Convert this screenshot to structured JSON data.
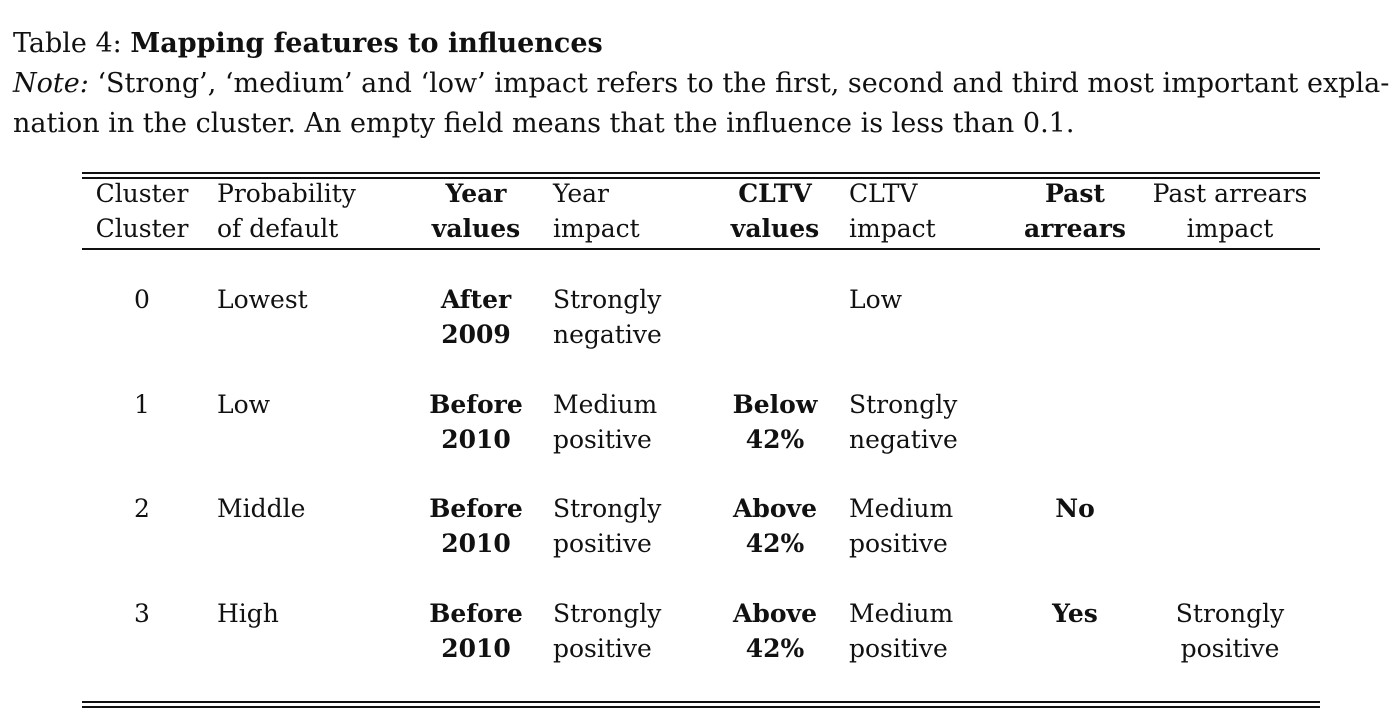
{
  "caption": {
    "table_label": "Table 4:",
    "title": "Mapping features to influences",
    "note_label": "Note:",
    "note_line1": "‘Strong’, ‘medium’ and ‘low’ impact refers to the first, second and third most important expla-",
    "note_line2": "nation in the cluster. An empty field means that the influence is less than 0.1."
  },
  "table": {
    "headers": {
      "cluster": [
        "Cluster",
        "Cluster"
      ],
      "probability": [
        "Probability",
        "of default"
      ],
      "year_values": [
        "Year",
        "values"
      ],
      "year_impact": [
        "Year",
        "impact"
      ],
      "cltv_values": [
        "CLTV",
        "values"
      ],
      "cltv_impact": [
        "CLTV",
        "impact"
      ],
      "past_arrears": [
        "Past",
        "arrears"
      ],
      "past_arrears_impact": [
        "Past arrears",
        "impact"
      ]
    },
    "rows": [
      {
        "cluster": "0",
        "probability": "Lowest",
        "year_values": [
          "After",
          "2009"
        ],
        "year_impact": [
          "Strongly",
          "negative"
        ],
        "cltv_values": [
          "",
          ""
        ],
        "cltv_impact": [
          "Low",
          ""
        ],
        "past_arrears": "",
        "past_arrears_impact": [
          "",
          ""
        ]
      },
      {
        "cluster": "1",
        "probability": "Low",
        "year_values": [
          "Before",
          "2010"
        ],
        "year_impact": [
          "Medium",
          "positive"
        ],
        "cltv_values": [
          "Below",
          "42%"
        ],
        "cltv_impact": [
          "Strongly",
          "negative"
        ],
        "past_arrears": "",
        "past_arrears_impact": [
          "",
          ""
        ]
      },
      {
        "cluster": "2",
        "probability": "Middle",
        "year_values": [
          "Before",
          "2010"
        ],
        "year_impact": [
          "Strongly",
          "positive"
        ],
        "cltv_values": [
          "Above",
          "42%"
        ],
        "cltv_impact": [
          "Medium",
          "positive"
        ],
        "past_arrears": "No",
        "past_arrears_impact": [
          "",
          ""
        ]
      },
      {
        "cluster": "3",
        "probability": "High",
        "year_values": [
          "Before",
          "2010"
        ],
        "year_impact": [
          "Strongly",
          "positive"
        ],
        "cltv_values": [
          "Above",
          "42%"
        ],
        "cltv_impact": [
          "Medium",
          "positive"
        ],
        "past_arrears": "Yes",
        "past_arrears_impact": [
          "Strongly",
          "positive"
        ]
      }
    ]
  }
}
